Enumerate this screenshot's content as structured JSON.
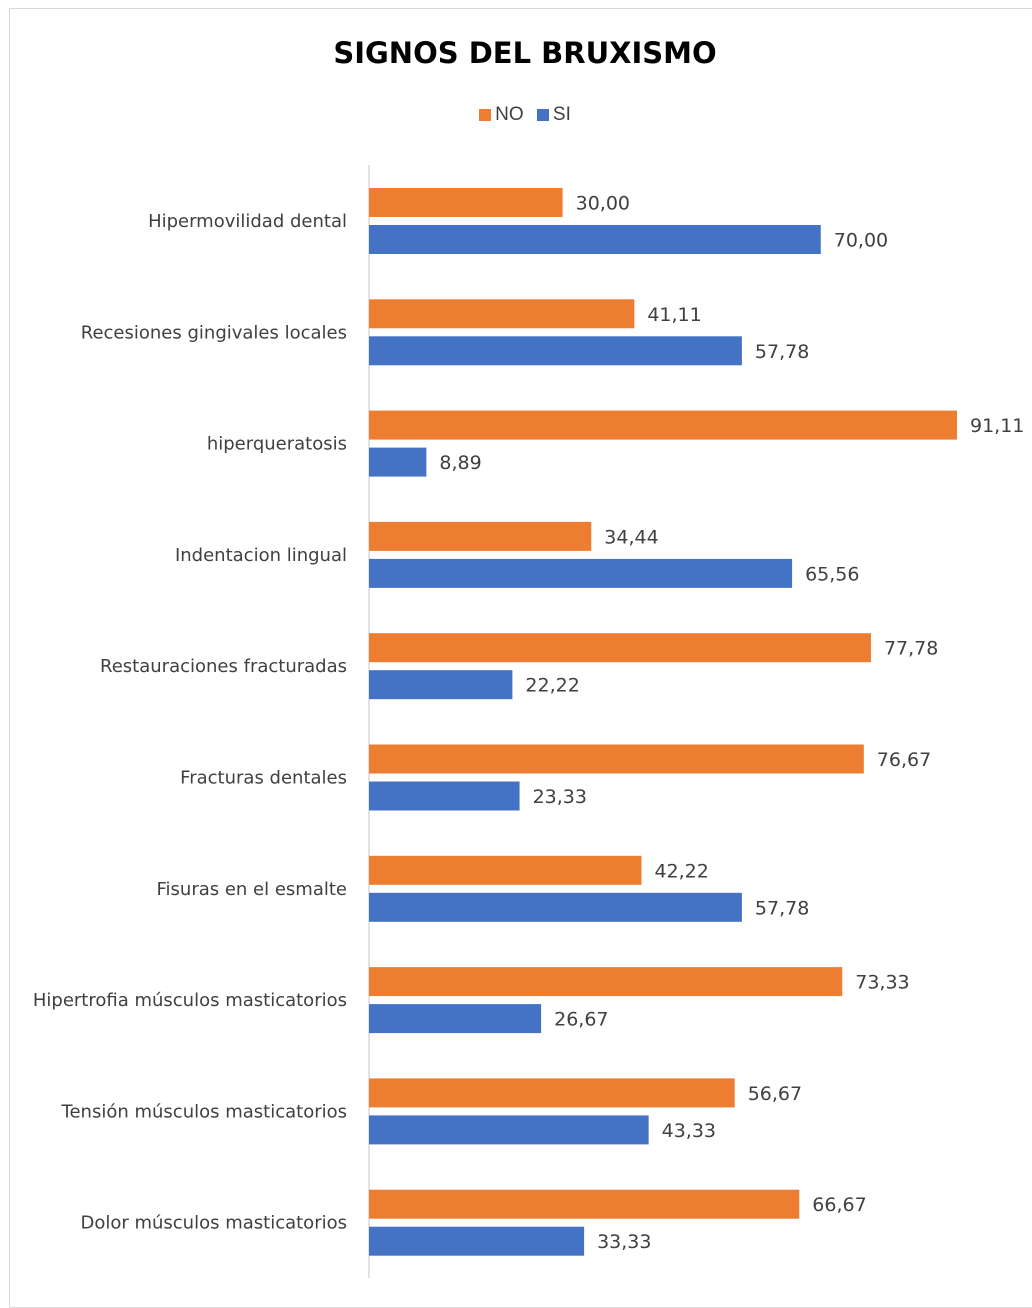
{
  "chart_data": {
    "type": "bar",
    "orientation": "horizontal",
    "title": "SIGNOS DEL BRUXISMO",
    "categories": [
      "Hipermovilidad dental",
      "Recesiones gingivales locales",
      "hiperqueratosis",
      "Indentacion lingual",
      "Restauraciones fracturadas",
      "Fracturas dentales",
      "Fisuras en el esmalte",
      "Hipertrofia músculos masticatorios",
      "Tensión músculos masticatorios",
      "Dolor músculos masticatorios"
    ],
    "series": [
      {
        "name": "NO",
        "color": "#ED7D31",
        "values": [
          30.0,
          41.11,
          91.11,
          34.44,
          77.78,
          76.67,
          42.22,
          73.33,
          56.67,
          66.67
        ],
        "labels": [
          "30,00",
          "41,11",
          "91,11",
          "34,44",
          "77,78",
          "76,67",
          "42,22",
          "73,33",
          "56,67",
          "66,67"
        ]
      },
      {
        "name": "SI",
        "color": "#4472C4",
        "values": [
          70.0,
          57.78,
          8.89,
          65.56,
          22.22,
          23.33,
          57.78,
          26.67,
          43.33,
          33.33
        ],
        "labels": [
          "70,00",
          "57,78",
          "8,89",
          "65,56",
          "22,22",
          "23,33",
          "57,78",
          "26,67",
          "43,33",
          "33,33"
        ]
      }
    ],
    "legend_position": "top",
    "gridlines": false,
    "xlim": [
      0,
      100
    ]
  }
}
